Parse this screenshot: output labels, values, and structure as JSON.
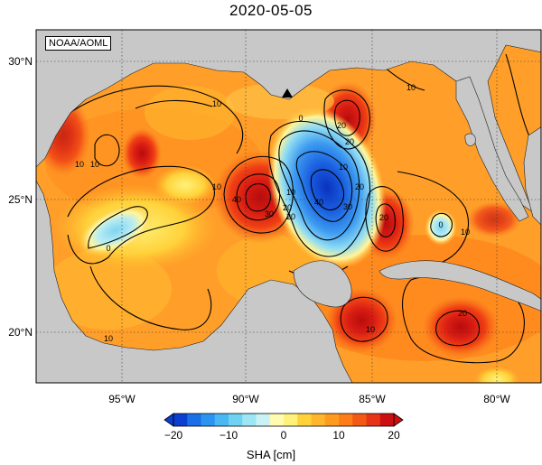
{
  "title": "2020-05-05",
  "credit": "NOAA/AOML",
  "map": {
    "variable": "SHA",
    "units": "cm",
    "lon_range": [
      -98,
      -78
    ],
    "lat_range": [
      18,
      31
    ],
    "lat_ticks": [
      "30°N",
      "25°N",
      "20°N"
    ],
    "lon_ticks": [
      "95°W",
      "90°W",
      "85°W",
      "80°W"
    ],
    "marker": "triangle-marker",
    "contour_labels": [
      "10",
      "10",
      "10",
      "10",
      "0",
      "20",
      "20",
      "40",
      "30",
      "10",
      "20",
      "0",
      "40",
      "30",
      "20",
      "10",
      "20",
      "20",
      "10",
      "10",
      "0",
      "10",
      "20",
      "10"
    ]
  },
  "colorbar": {
    "label": "SHA [cm]",
    "ticks": [
      "-20",
      "-10",
      "0",
      "10",
      "20"
    ],
    "range": [
      -20,
      20
    ],
    "colors": [
      "#0a3fd0",
      "#1a6fe6",
      "#2b94f0",
      "#48b8f4",
      "#6ed2f2",
      "#9de6f4",
      "#c8f2f6",
      "#fffbb0",
      "#fff27a",
      "#ffd23a",
      "#ffb52c",
      "#ff9a20",
      "#ff7d18",
      "#f25a14",
      "#e63414",
      "#cc1010"
    ]
  },
  "colors": {
    "land": "#c8c8c8",
    "sea_background": "#ff9f2a"
  }
}
